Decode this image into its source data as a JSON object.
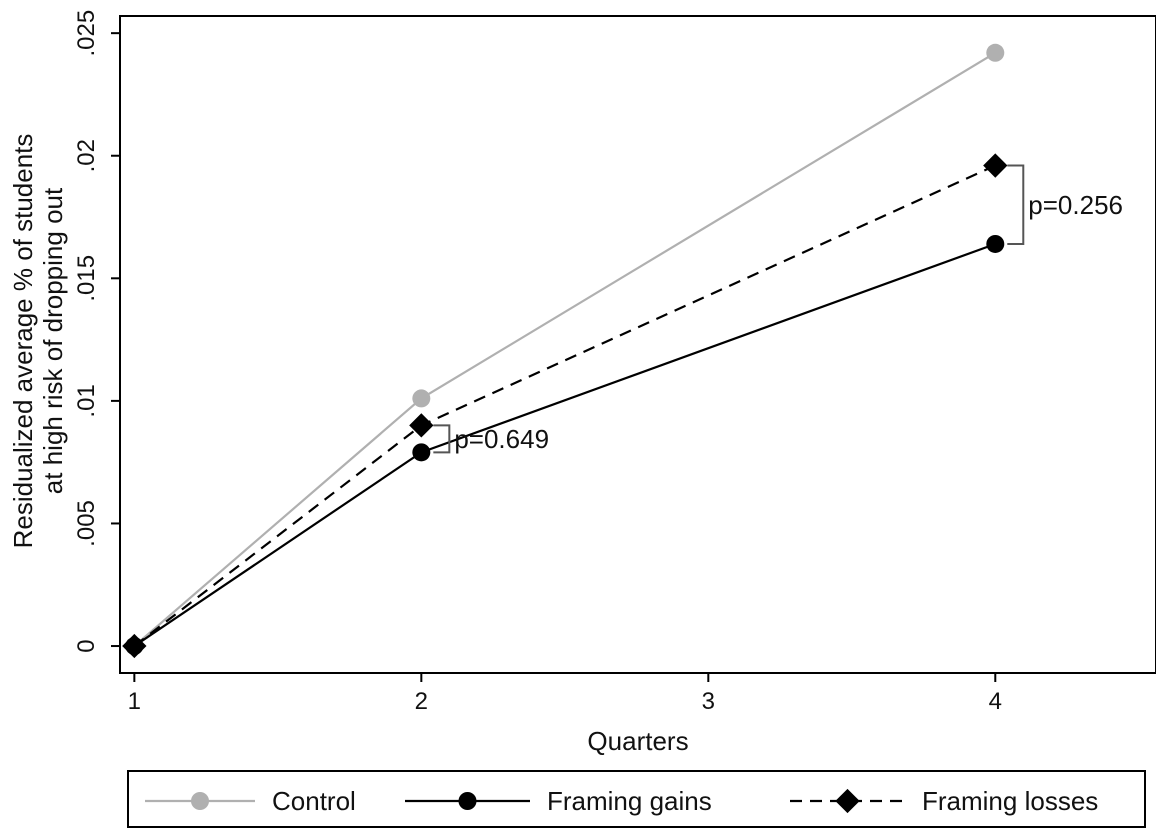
{
  "chart_data": {
    "type": "line",
    "title": "",
    "xlabel": "Quarters",
    "ylabel_lines": [
      "Residualized average % of students",
      "at high risk of dropping out"
    ],
    "x_ticks": [
      "1",
      "2",
      "3",
      "4"
    ],
    "y_ticks": [
      "0",
      ".005",
      ".01",
      ".015",
      ".02",
      ".025"
    ],
    "xlim": [
      0.95,
      4.56
    ],
    "ylim": [
      -0.0011,
      0.0257
    ],
    "grid": false,
    "legend_position": "bottom",
    "series": [
      {
        "name": "Control",
        "x": [
          1,
          2,
          4
        ],
        "y": [
          0.0,
          0.0101,
          0.0242
        ],
        "color": "#b0b0b0",
        "line_style": "solid",
        "marker": "circle"
      },
      {
        "name": "Framing gains",
        "x": [
          1,
          2,
          4
        ],
        "y": [
          0.0,
          0.0079,
          0.0164
        ],
        "color": "#000000",
        "line_style": "solid",
        "marker": "circle"
      },
      {
        "name": "Framing losses",
        "x": [
          1,
          2,
          4
        ],
        "y": [
          0.0,
          0.009,
          0.0196
        ],
        "color": "#000000",
        "line_style": "dashed",
        "marker": "diamond"
      }
    ],
    "annotations": [
      {
        "text": "p=0.649",
        "x": 2,
        "y_top": 0.009,
        "y_bottom": 0.0079
      },
      {
        "text": "p=0.256",
        "x": 4,
        "y_top": 0.0196,
        "y_bottom": 0.0164
      }
    ]
  }
}
